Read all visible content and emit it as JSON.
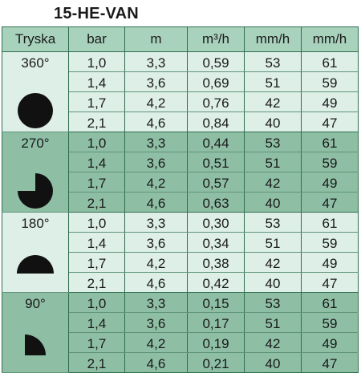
{
  "title": "15-HE-VAN",
  "headers": {
    "tryska": "Tryska",
    "bar": "bar",
    "m": "m",
    "flow": "m³/h",
    "rate1": "mm/h",
    "rate2": "mm/h"
  },
  "groups": [
    {
      "angle": "360°",
      "shape": "full-circle-icon",
      "rows": [
        [
          "1,0",
          "3,3",
          "0,59",
          "53",
          "61"
        ],
        [
          "1,4",
          "3,6",
          "0,69",
          "51",
          "59"
        ],
        [
          "1,7",
          "4,2",
          "0,76",
          "42",
          "49"
        ],
        [
          "2,1",
          "4,6",
          "0,84",
          "40",
          "47"
        ]
      ]
    },
    {
      "angle": "270°",
      "shape": "three-quarter-circle-icon",
      "rows": [
        [
          "1,0",
          "3,3",
          "0,44",
          "53",
          "61"
        ],
        [
          "1,4",
          "3,6",
          "0,51",
          "51",
          "59"
        ],
        [
          "1,7",
          "4,2",
          "0,57",
          "42",
          "49"
        ],
        [
          "2,1",
          "4,6",
          "0,63",
          "40",
          "47"
        ]
      ]
    },
    {
      "angle": "180°",
      "shape": "half-circle-icon",
      "rows": [
        [
          "1,0",
          "3,3",
          "0,30",
          "53",
          "61"
        ],
        [
          "1,4",
          "3,6",
          "0,34",
          "51",
          "59"
        ],
        [
          "1,7",
          "4,2",
          "0,38",
          "42",
          "49"
        ],
        [
          "2,1",
          "4,6",
          "0,42",
          "40",
          "47"
        ]
      ]
    },
    {
      "angle": "90°",
      "shape": "quarter-circle-icon",
      "rows": [
        [
          "1,0",
          "3,3",
          "0,15",
          "53",
          "61"
        ],
        [
          "1,4",
          "3,6",
          "0,17",
          "51",
          "59"
        ],
        [
          "1,7",
          "4,2",
          "0,19",
          "42",
          "49"
        ],
        [
          "2,1",
          "4,6",
          "0,21",
          "40",
          "47"
        ]
      ]
    }
  ]
}
